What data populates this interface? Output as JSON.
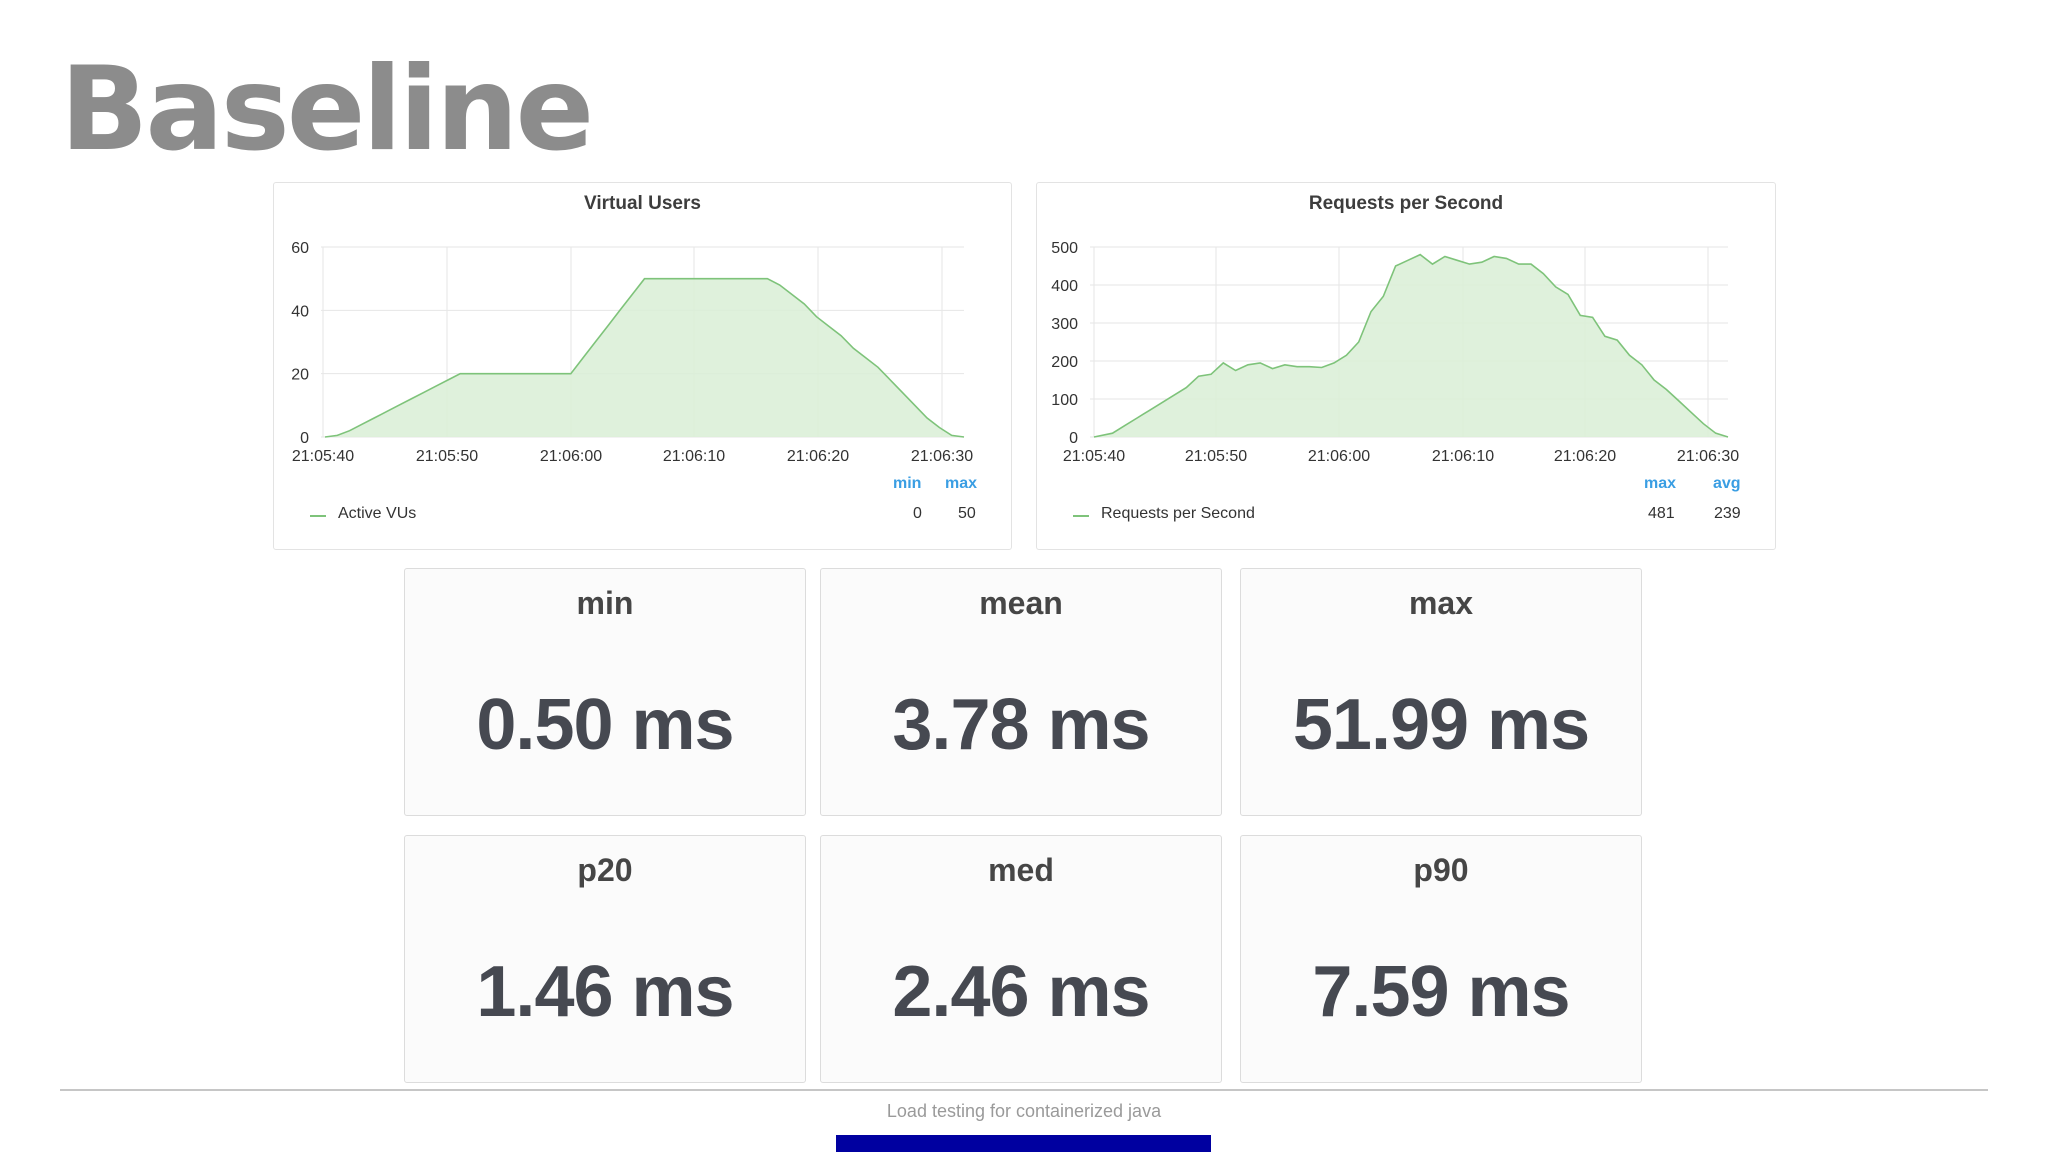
{
  "slide": {
    "title": "Baseline",
    "footer_text": "Load testing for containerized java"
  },
  "colors": {
    "series_line": "#7ec37a",
    "series_fill": "#d9eed6",
    "legend_header": "#3a9ee3"
  },
  "chart_data": [
    {
      "type": "area",
      "title": "Virtual Users",
      "xlabel": "",
      "ylabel": "",
      "x_tick_labels": [
        "21:05:40",
        "21:05:50",
        "21:06:00",
        "21:06:10",
        "21:06:20",
        "21:06:30"
      ],
      "y_tick_labels": [
        "0",
        "20",
        "40",
        "60"
      ],
      "xlim": [
        -1,
        51
      ],
      "ylim": [
        0,
        60
      ],
      "grid": true,
      "legend_placement": "bottom",
      "series": [
        {
          "name": "Active VUs",
          "x": [
            -1,
            0,
            1,
            2,
            3,
            4,
            5,
            6,
            7,
            8,
            9,
            10,
            11,
            12,
            13,
            14,
            15,
            16,
            17,
            18,
            19,
            20,
            21,
            22,
            23,
            24,
            25,
            26,
            27,
            28,
            29,
            30,
            31,
            32,
            33,
            34,
            35,
            36,
            37,
            38,
            39,
            40,
            41,
            42,
            43,
            44,
            45,
            46,
            47,
            48,
            49,
            50,
            51
          ],
          "values": [
            0,
            0.5,
            2,
            4,
            6,
            8,
            10,
            12,
            14,
            16,
            18,
            20,
            20,
            20,
            20,
            20,
            20,
            20,
            20,
            20,
            20,
            25,
            30,
            35,
            40,
            45,
            50,
            50,
            50,
            50,
            50,
            50,
            50,
            50,
            50,
            50,
            50,
            48,
            45,
            42,
            38,
            35,
            32,
            28,
            25,
            22,
            18,
            14,
            10,
            6,
            3,
            0.5,
            0
          ]
        }
      ],
      "legend_columns": [
        "min",
        "max"
      ],
      "legend_values": [
        "0",
        "50"
      ]
    },
    {
      "type": "area",
      "title": "Requests per Second",
      "xlabel": "",
      "ylabel": "",
      "x_tick_labels": [
        "21:05:40",
        "21:05:50",
        "21:06:00",
        "21:06:10",
        "21:06:20",
        "21:06:30"
      ],
      "y_tick_labels": [
        "0",
        "100",
        "200",
        "300",
        "400",
        "500"
      ],
      "xlim": [
        -0.5,
        51
      ],
      "ylim": [
        0,
        500
      ],
      "grid": true,
      "legend_placement": "bottom",
      "series": [
        {
          "name": "Requests per Second",
          "x": [
            -0.5,
            1,
            2,
            3,
            4,
            5,
            6,
            7,
            8,
            9,
            10,
            11,
            12,
            13,
            14,
            15,
            16,
            17,
            18,
            19,
            20,
            21,
            22,
            23,
            24,
            25,
            26,
            27,
            28,
            29,
            30,
            31,
            32,
            33,
            34,
            35,
            36,
            37,
            38,
            39,
            40,
            41,
            42,
            43,
            44,
            45,
            46,
            47,
            48,
            49,
            50,
            51
          ],
          "values": [
            0,
            10,
            30,
            50,
            70,
            90,
            110,
            130,
            160,
            165,
            195,
            175,
            190,
            195,
            180,
            190,
            185,
            185,
            183,
            195,
            215,
            250,
            330,
            370,
            450,
            465,
            480,
            455,
            475,
            465,
            455,
            460,
            475,
            470,
            455,
            455,
            430,
            395,
            375,
            320,
            315,
            265,
            255,
            215,
            190,
            150,
            125,
            95,
            65,
            35,
            10,
            0
          ]
        }
      ],
      "legend_columns": [
        "max",
        "avg"
      ],
      "legend_values": [
        "481",
        "239"
      ]
    }
  ],
  "stats": [
    {
      "label": "min",
      "value": "0.50 ms"
    },
    {
      "label": "mean",
      "value": "3.78 ms"
    },
    {
      "label": "max",
      "value": "51.99 ms"
    },
    {
      "label": "p20",
      "value": "1.46 ms"
    },
    {
      "label": "med",
      "value": "2.46 ms"
    },
    {
      "label": "p90",
      "value": "7.59 ms"
    }
  ]
}
